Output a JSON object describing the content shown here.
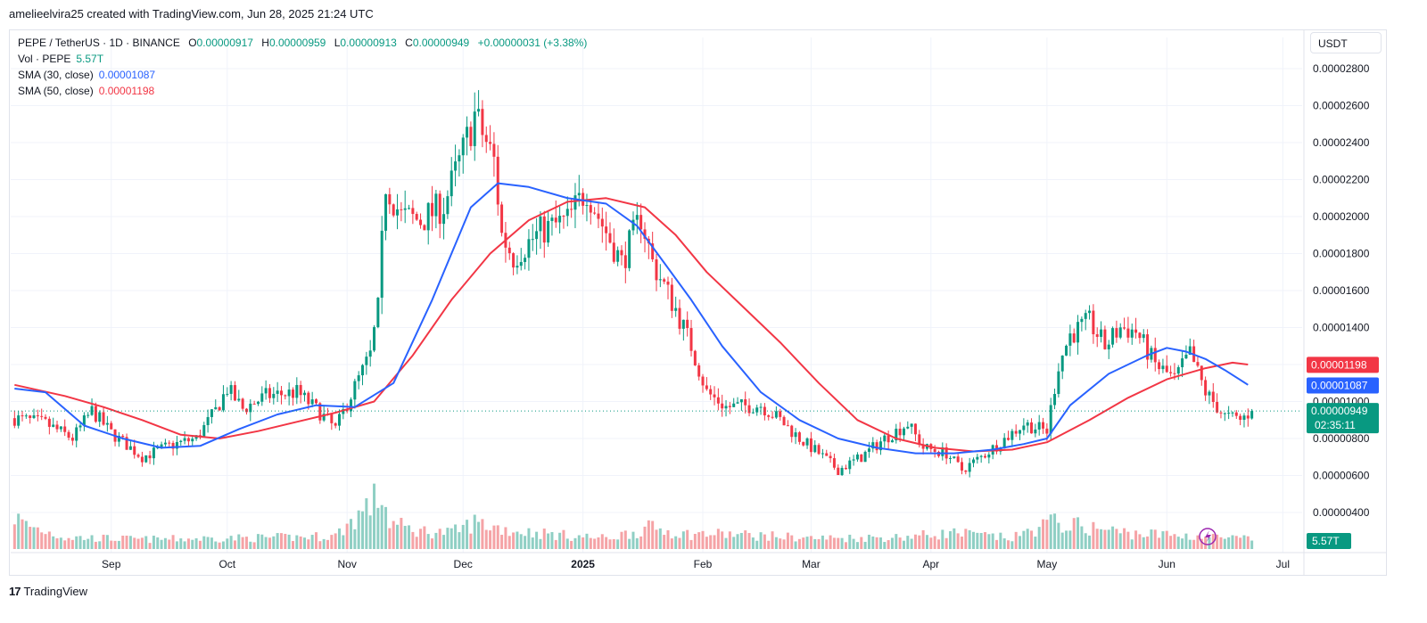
{
  "header": {
    "created_by": "amelieelvira25 created with TradingView.com, Jun 28, 2025 21:24 UTC"
  },
  "legend": {
    "symbol": "PEPE / TetherUS · 1D · BINANCE",
    "open_label": "O",
    "open": "0.00000917",
    "high_label": "H",
    "high": "0.00000959",
    "low_label": "L",
    "low": "0.00000913",
    "close_label": "C",
    "close": "0.00000949",
    "change": "+0.00000031 (+3.38%)",
    "vol_label": "Vol · PEPE",
    "vol": "5.57T",
    "sma30_label": "SMA (30, close)",
    "sma30": "0.00001087",
    "sma50_label": "SMA (50, close)",
    "sma50": "0.00001198"
  },
  "currency_button": "USDT",
  "price_tags": {
    "sma50": "0.00001198",
    "sma30": "0.00001087",
    "last": "0.00000949",
    "countdown": "02:35:11",
    "volume": "5.57T"
  },
  "footer": {
    "brand": "TradingView"
  },
  "colors": {
    "up": "#089981",
    "down": "#f23645",
    "sma30": "#2962ff",
    "sma50": "#f23645",
    "vol_up": "#8fcfc4",
    "vol_down": "#f5a3a6"
  },
  "chart_data": {
    "type": "candlestick",
    "y_axis_ticks": [
      "0.00002800",
      "0.00002600",
      "0.00002400",
      "0.00002200",
      "0.00002000",
      "0.00001800",
      "0.00001600",
      "0.00001400",
      "0.00001200",
      "0.00001000",
      "0.00000800",
      "0.00000600",
      "0.00000400"
    ],
    "y_tick_values": [
      28,
      26,
      24,
      22,
      20,
      18,
      16,
      14,
      12,
      10,
      8,
      6,
      4
    ],
    "y_unit_scale": "1e-6 USDT",
    "ylim": [
      3.0,
      29.5
    ],
    "x_axis_labels": [
      "Sep",
      "Oct",
      "Nov",
      "Dec",
      "2025",
      "Feb",
      "Mar",
      "Apr",
      "May",
      "Jun",
      "Jul"
    ],
    "x_label_days": [
      22,
      52,
      83,
      113,
      144,
      175,
      203,
      234,
      264,
      295,
      325
    ],
    "day_range": [
      -4,
      330
    ],
    "price_keypoints": [
      [
        -3,
        9.1
      ],
      [
        5,
        8.8
      ],
      [
        12,
        8.0
      ],
      [
        17,
        9.5
      ],
      [
        22,
        8.3
      ],
      [
        30,
        7.0
      ],
      [
        37,
        7.6
      ],
      [
        44,
        8.0
      ],
      [
        49,
        9.5
      ],
      [
        52,
        10.7
      ],
      [
        56,
        9.6
      ],
      [
        62,
        10.3
      ],
      [
        70,
        10.5
      ],
      [
        76,
        9.4
      ],
      [
        80,
        8.5
      ],
      [
        85,
        10.8
      ],
      [
        89,
        12.5
      ],
      [
        91,
        15.0
      ],
      [
        92,
        18.5
      ],
      [
        93,
        21.8
      ],
      [
        97,
        20.0
      ],
      [
        102,
        19.8
      ],
      [
        108,
        20.6
      ],
      [
        113,
        23.5
      ],
      [
        116,
        25.5
      ],
      [
        121,
        23.0
      ],
      [
        123,
        19.0
      ],
      [
        126,
        17.8
      ],
      [
        133,
        19.2
      ],
      [
        140,
        19.8
      ],
      [
        145,
        21.5
      ],
      [
        148,
        20.0
      ],
      [
        154,
        17.5
      ],
      [
        159,
        20.0
      ],
      [
        162,
        17.5
      ],
      [
        168,
        15.0
      ],
      [
        172,
        13.0
      ],
      [
        176,
        10.5
      ],
      [
        181,
        9.7
      ],
      [
        190,
        9.8
      ],
      [
        195,
        9.0
      ],
      [
        200,
        8.0
      ],
      [
        205,
        7.2
      ],
      [
        210,
        6.3
      ],
      [
        216,
        7.0
      ],
      [
        222,
        8.0
      ],
      [
        228,
        8.8
      ],
      [
        232,
        7.5
      ],
      [
        238,
        7.2
      ],
      [
        242,
        6.3
      ],
      [
        247,
        7.0
      ],
      [
        252,
        7.8
      ],
      [
        258,
        8.8
      ],
      [
        264,
        8.4
      ],
      [
        267,
        12.0
      ],
      [
        270,
        13.6
      ],
      [
        275,
        14.3
      ],
      [
        279,
        13.0
      ],
      [
        283,
        14.0
      ],
      [
        287,
        13.8
      ],
      [
        292,
        12.0
      ],
      [
        297,
        11.2
      ],
      [
        301,
        12.6
      ],
      [
        305,
        10.5
      ],
      [
        310,
        9.2
      ],
      [
        314,
        9.0
      ],
      [
        317,
        9.49
      ]
    ],
    "sma30_keypoints": [
      [
        -3,
        10.7
      ],
      [
        5,
        10.5
      ],
      [
        15,
        8.7
      ],
      [
        25,
        8.0
      ],
      [
        35,
        7.5
      ],
      [
        45,
        7.6
      ],
      [
        55,
        8.5
      ],
      [
        65,
        9.3
      ],
      [
        75,
        9.8
      ],
      [
        85,
        9.7
      ],
      [
        95,
        11.0
      ],
      [
        105,
        15.5
      ],
      [
        115,
        20.5
      ],
      [
        122,
        21.8
      ],
      [
        130,
        21.6
      ],
      [
        140,
        21.0
      ],
      [
        150,
        20.7
      ],
      [
        158,
        19.5
      ],
      [
        165,
        17.5
      ],
      [
        172,
        15.5
      ],
      [
        180,
        13.0
      ],
      [
        190,
        10.5
      ],
      [
        200,
        9.0
      ],
      [
        210,
        8.0
      ],
      [
        220,
        7.5
      ],
      [
        230,
        7.2
      ],
      [
        240,
        7.2
      ],
      [
        250,
        7.4
      ],
      [
        258,
        7.7
      ],
      [
        264,
        8.0
      ],
      [
        270,
        9.8
      ],
      [
        280,
        11.5
      ],
      [
        290,
        12.5
      ],
      [
        295,
        12.9
      ],
      [
        300,
        12.7
      ],
      [
        305,
        12.3
      ],
      [
        310,
        11.7
      ],
      [
        316,
        10.9
      ]
    ],
    "sma50_keypoints": [
      [
        -3,
        10.9
      ],
      [
        10,
        10.3
      ],
      [
        20,
        9.7
      ],
      [
        30,
        9.0
      ],
      [
        40,
        8.2
      ],
      [
        50,
        8.0
      ],
      [
        60,
        8.4
      ],
      [
        70,
        8.9
      ],
      [
        80,
        9.4
      ],
      [
        90,
        10.0
      ],
      [
        100,
        12.5
      ],
      [
        110,
        15.5
      ],
      [
        120,
        18.0
      ],
      [
        130,
        19.8
      ],
      [
        140,
        20.8
      ],
      [
        150,
        21.0
      ],
      [
        160,
        20.5
      ],
      [
        168,
        19.0
      ],
      [
        176,
        17.0
      ],
      [
        185,
        15.2
      ],
      [
        195,
        13.2
      ],
      [
        205,
        11.0
      ],
      [
        215,
        9.0
      ],
      [
        225,
        8.0
      ],
      [
        235,
        7.5
      ],
      [
        245,
        7.3
      ],
      [
        255,
        7.4
      ],
      [
        264,
        7.8
      ],
      [
        275,
        9.0
      ],
      [
        285,
        10.2
      ],
      [
        295,
        11.2
      ],
      [
        305,
        11.8
      ],
      [
        312,
        12.1
      ],
      [
        316,
        12.0
      ]
    ],
    "volume_keypoints": [
      [
        -3,
        0.6
      ],
      [
        0,
        0.45
      ],
      [
        10,
        0.22
      ],
      [
        30,
        0.18
      ],
      [
        50,
        0.2
      ],
      [
        70,
        0.22
      ],
      [
        80,
        0.25
      ],
      [
        90,
        0.9
      ],
      [
        92,
        1.0
      ],
      [
        94,
        0.5
      ],
      [
        100,
        0.35
      ],
      [
        110,
        0.3
      ],
      [
        116,
        0.5
      ],
      [
        125,
        0.35
      ],
      [
        140,
        0.25
      ],
      [
        150,
        0.2
      ],
      [
        162,
        0.4
      ],
      [
        170,
        0.28
      ],
      [
        180,
        0.28
      ],
      [
        190,
        0.25
      ],
      [
        205,
        0.2
      ],
      [
        225,
        0.22
      ],
      [
        240,
        0.3
      ],
      [
        255,
        0.2
      ],
      [
        265,
        0.5
      ],
      [
        275,
        0.4
      ],
      [
        285,
        0.3
      ],
      [
        300,
        0.25
      ],
      [
        317,
        0.18
      ]
    ],
    "last_price": 9.49,
    "sma30_last": 10.87,
    "sma50_last": 11.98
  }
}
